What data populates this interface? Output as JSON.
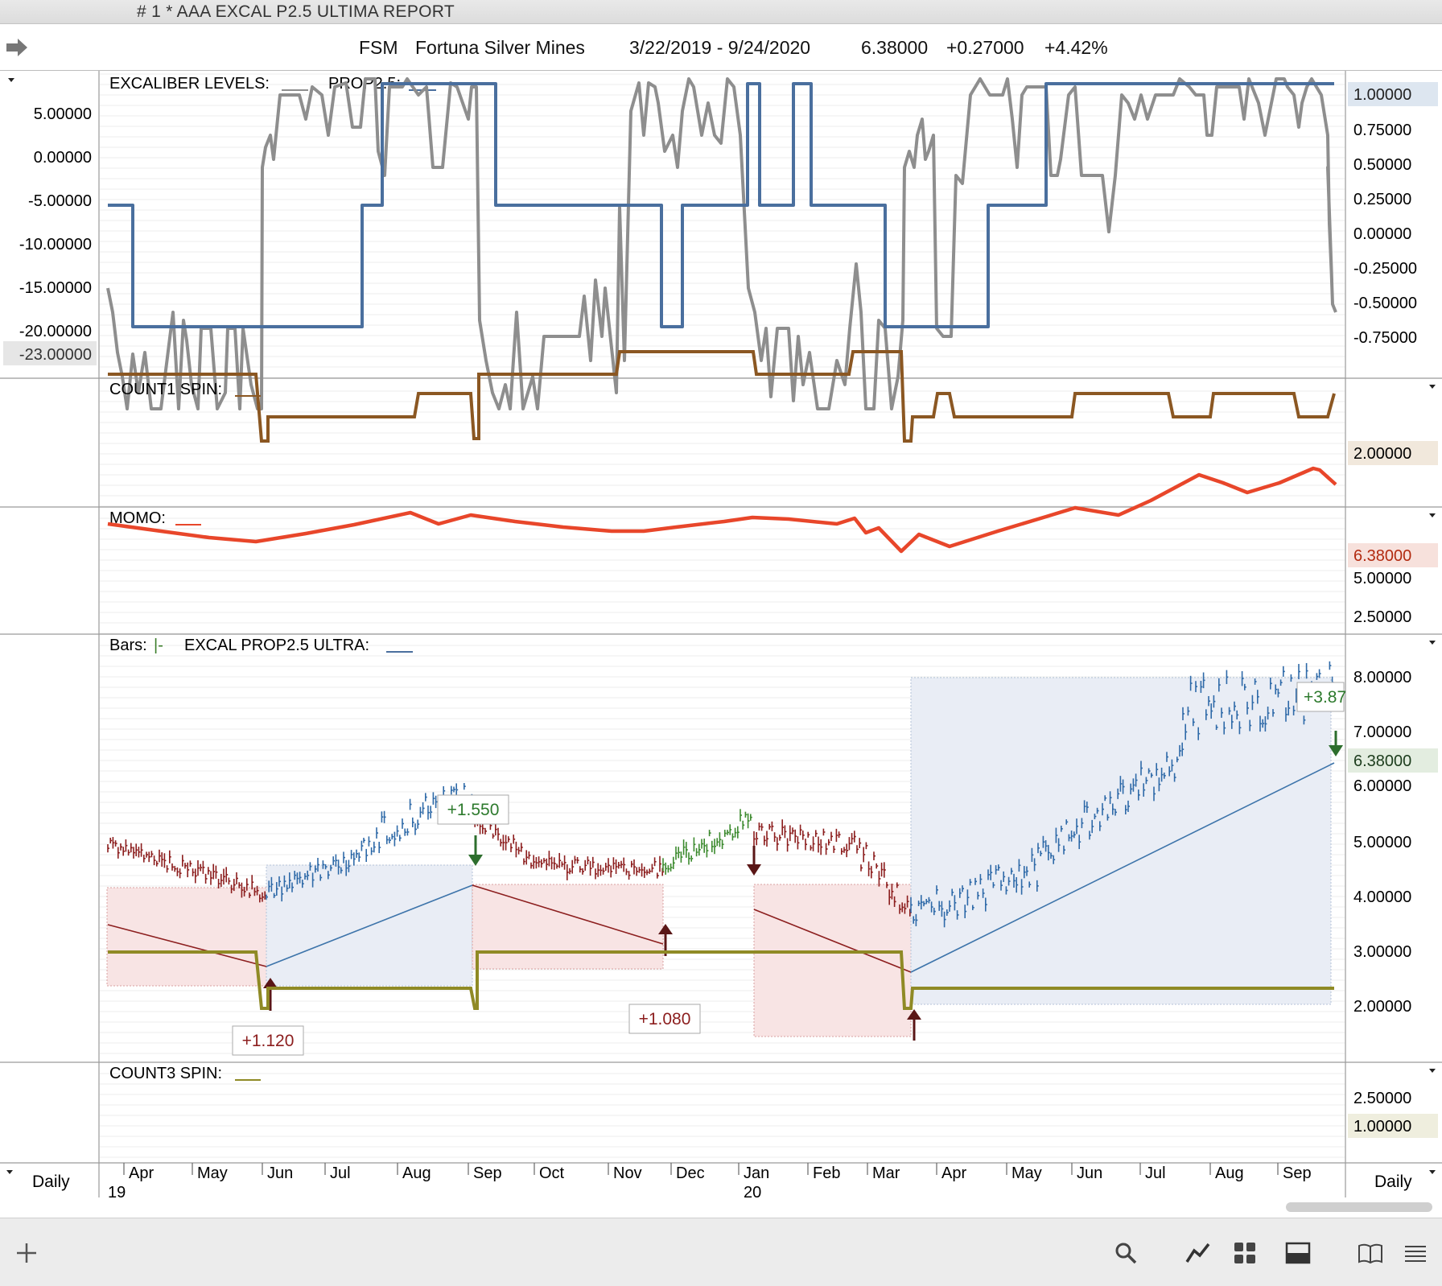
{
  "window": {
    "title": "# 1 *  AAA EXCAL P2.5 ULTIMA REPORT"
  },
  "header": {
    "symbol": "FSM",
    "name": "Fortuna Silver Mines",
    "date_range": "3/22/2019 - 9/24/2020",
    "last": "6.38000",
    "change": "+0.27000",
    "change_pct": "+4.42%"
  },
  "panes": {
    "excaliber": {
      "label_a": "EXCALIBER LEVELS:",
      "label_b": "PROP2.5:",
      "left_axis": [
        "5.00000",
        "0.00000",
        "-5.00000",
        "-10.00000",
        "-15.00000",
        "-20.00000"
      ],
      "left_current": "-23.00000",
      "right_axis": [
        "0.75000",
        "0.50000",
        "0.25000",
        "0.00000",
        "-0.25000",
        "-0.50000",
        "-0.75000"
      ],
      "right_current": "1.00000",
      "gray_color": "#8e8e8e",
      "blue_color": "#4a6f9e"
    },
    "count1": {
      "label": "COUNT1 SPIN:",
      "right_current": "2.00000",
      "color": "#8b5722"
    },
    "momo": {
      "label": "MOMO:",
      "right_axis": [
        "5.00000",
        "2.50000"
      ],
      "right_current": "6.38000",
      "color": "#e8462a"
    },
    "bars": {
      "label_a": "Bars:",
      "label_sym": "|-",
      "label_b": "EXCAL PROP2.5 ULTRA:",
      "right_axis": [
        "8.00000",
        "7.00000",
        "6.00000",
        "5.00000",
        "4.00000",
        "3.00000",
        "2.00000"
      ],
      "right_current": "6.38000",
      "annotations": [
        "+1.120",
        "+1.550",
        "+1.080",
        "+3.87"
      ]
    },
    "count3": {
      "label": "COUNT3 SPIN:",
      "right_axis": [
        "2.50000"
      ],
      "right_current": "1.00000",
      "color": "#8f8a25"
    }
  },
  "x_axis": {
    "months": [
      "Apr",
      "May",
      "Jun",
      "Jul",
      "Aug",
      "Sep",
      "Oct",
      "Nov",
      "Dec",
      "Jan",
      "Feb",
      "Mar",
      "Apr",
      "May",
      "Jun",
      "Jul",
      "Aug",
      "Sep"
    ],
    "years": [
      "19",
      "20"
    ],
    "periodicity_left": "Daily",
    "periodicity_right": "Daily"
  },
  "toolbar": {
    "icons": [
      "add-icon",
      "search-icon",
      "line-chart-icon",
      "grid-icon",
      "panel-icon",
      "book-icon",
      "menu-icon"
    ]
  }
}
